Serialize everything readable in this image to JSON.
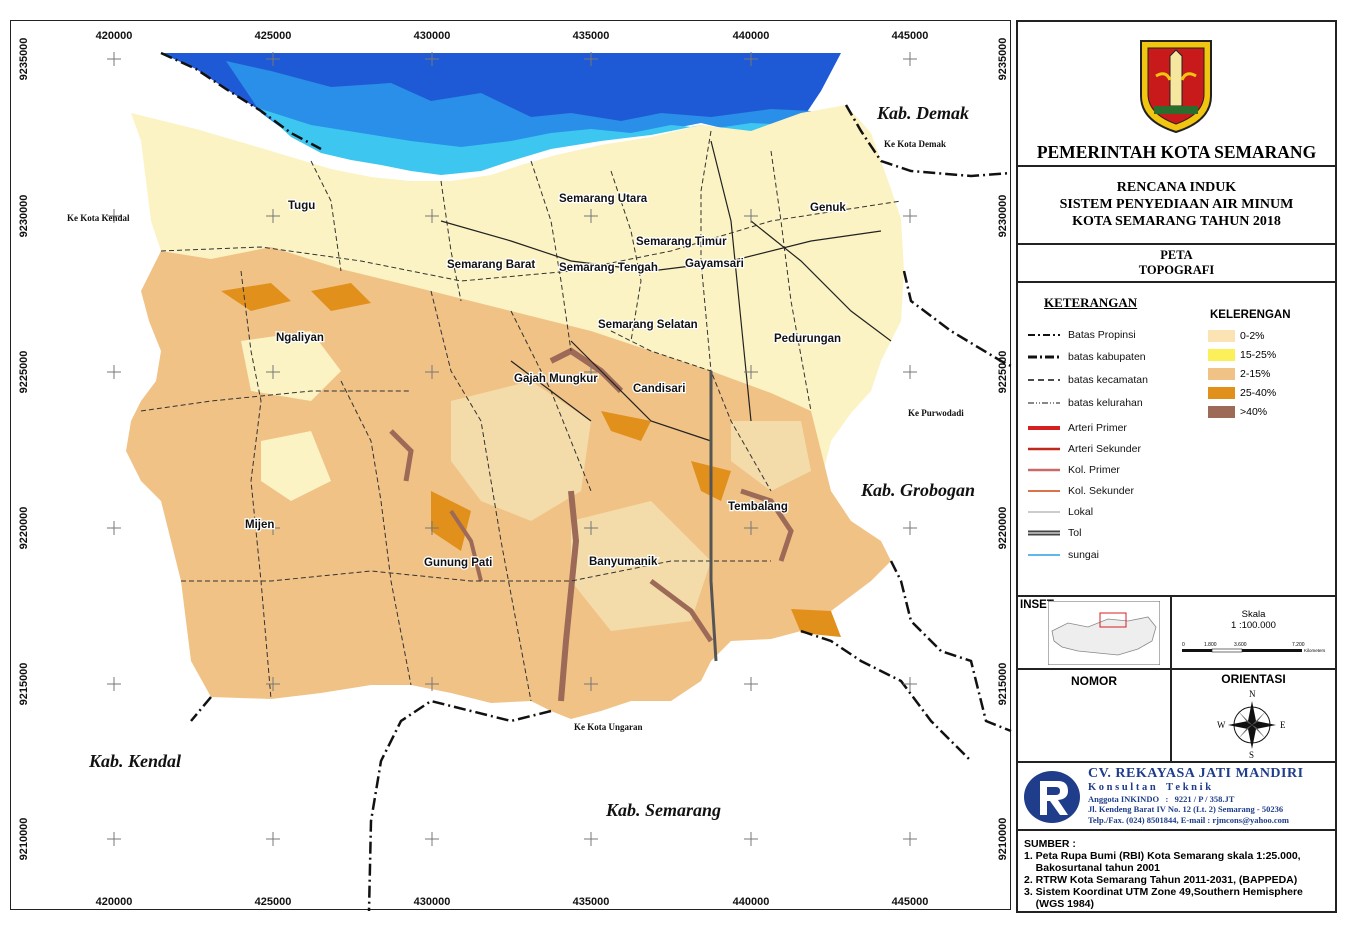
{
  "map": {
    "x_ticks": [
      "420000",
      "425000",
      "430000",
      "435000",
      "440000",
      "445000"
    ],
    "y_ticks": [
      "9235000",
      "9230000",
      "9225000",
      "9220000",
      "9215000",
      "9210000"
    ],
    "region_labels": {
      "demak": "Kab. Demak",
      "grobogan": "Kab. Grobogan",
      "kendal": "Kab. Kendal",
      "semarang": "Kab. Semarang"
    },
    "district_labels": {
      "tugu": "Tugu",
      "semarang_utara": "Semarang Utara",
      "semarang_timur": "Semarang Timur",
      "genuk": "Genuk",
      "semarang_barat": "Semarang Barat",
      "semarang_tengah": "Semarang Tengah",
      "gayamsari": "Gayamsari",
      "ngaliyan": "Ngaliyan",
      "semarang_selatan": "Semarang Selatan",
      "pedurungan": "Pedurungan",
      "gajah_mungkur": "Gajah Mungkur",
      "candisari": "Candisari",
      "tembalang": "Tembalang",
      "mijen": "Mijen",
      "gunung_pati": "Gunung Pati",
      "banyumanik": "Banyumanik"
    },
    "direction_labels": {
      "kendal": "Ke Kota Kendal",
      "demak": "Ke Kota Demak",
      "purwodadi": "Ke Purwodadi",
      "ungaran": "Ke Kota Ungaran"
    },
    "colors": {
      "sea_deep": "#1f5ad6",
      "sea_mid": "#2a8fe8",
      "sea_shallow": "#3dc7f0",
      "sea_pale": "#8fe3f7",
      "flat": "#fbf3c3",
      "slope_2_15": "#f0c286",
      "slope_mid": "#f3dcaa",
      "slope_25_40": "#e2901c",
      "slope_40": "#9c6a57"
    }
  },
  "sidebar": {
    "government": "PEMERINTAH KOTA SEMARANG",
    "plan_lines": [
      "RENCANA INDUK",
      "SISTEM PENYEDIAAN AIR MINUM",
      "KOTA SEMARANG TAHUN 2018"
    ],
    "map_title_lines": [
      "PETA",
      "TOPOGRAFI"
    ],
    "legend": {
      "title": "KETERANGAN",
      "items": [
        {
          "label": "Batas Propinsi",
          "icon": "dash-dot-line"
        },
        {
          "label": "batas kabupaten",
          "icon": "dash-dot-line-thick"
        },
        {
          "label": "batas kecamatan",
          "icon": "dashed-line"
        },
        {
          "label": "batas kelurahan",
          "icon": "dash-dot-dot-line"
        },
        {
          "label": "Arteri Primer",
          "icon": "red-thick-line"
        },
        {
          "label": "Arteri Sekunder",
          "icon": "red-line"
        },
        {
          "label": "Kol. Primer",
          "icon": "pink-line"
        },
        {
          "label": "Kol. Sekunder",
          "icon": "orange-line"
        },
        {
          "label": "Lokal",
          "icon": "grey-line"
        },
        {
          "label": "Tol",
          "icon": "toll-line"
        },
        {
          "label": "sungai",
          "icon": "blue-line"
        }
      ]
    },
    "slope": {
      "title": "KELERENGAN",
      "items": [
        {
          "label": "0-2%",
          "color": "#fbe3b3"
        },
        {
          "label": "15-25%",
          "color": "#fbf05a"
        },
        {
          "label": "2-15%",
          "color": "#f0c286"
        },
        {
          "label": "25-40%",
          "color": "#e2901c"
        },
        {
          "label": ">40%",
          "color": "#9c6a57"
        }
      ]
    },
    "inset_label": "INSET",
    "scale": {
      "title": "Skala",
      "ratio": "1 :100.000",
      "ticks": [
        "0",
        "1.800",
        "3.600",
        "",
        "7.200"
      ],
      "unit": "Kilometers"
    },
    "nomor_label": "NOMOR",
    "orientation": {
      "title": "ORIENTASI",
      "n": "N",
      "s": "S",
      "e": "E",
      "w": "W"
    },
    "company": {
      "name": "CV. REKAYASA JATI MANDIRI",
      "subtitle": "K o n s u l t a n    T e k n i k",
      "member": "Anggota INKINDO   :   9221 / P / 358.JT",
      "address": "Jl. Kendeng Barat IV No. 12 (Lt. 2) Semarang - 50236",
      "contact": "Telp./Fax. (024) 8501844, E-mail : rjmcons@yahoo.com"
    },
    "sources": {
      "title": "SUMBER :",
      "items": [
        "1. Peta Rupa Bumi (RBI) Kota Semarang skala 1:25.000,",
        "    Bakosurtanal tahun 2001",
        "2. RTRW Kota Semarang Tahun 2011-2031, (BAPPEDA)",
        "3. Sistem Koordinat UTM Zone 49,Southern Hemisphere",
        "    (WGS 1984)"
      ]
    }
  }
}
